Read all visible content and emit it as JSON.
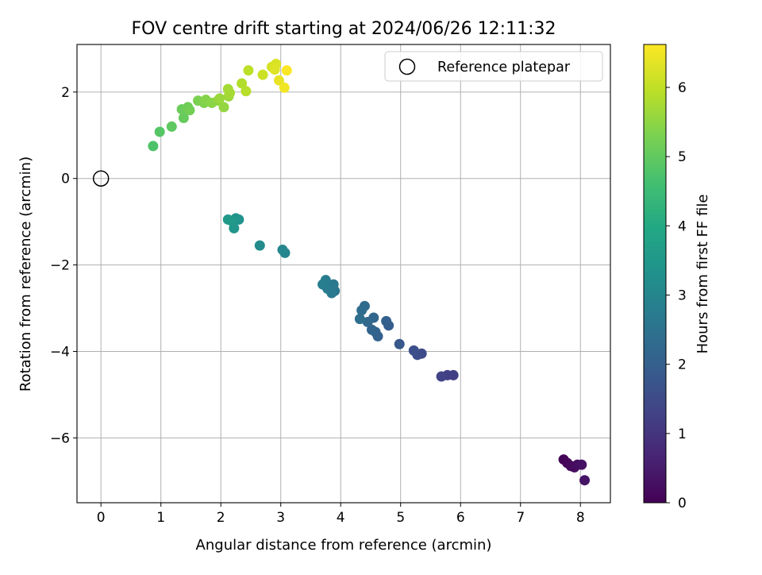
{
  "chart_data": {
    "type": "scatter",
    "title": "FOV centre drift starting at 2024/06/26 12:11:32",
    "xlabel": "Angular distance from reference (arcmin)",
    "ylabel": "Rotation from reference (arcmin)",
    "xlim": [
      -0.4,
      8.5
    ],
    "ylim": [
      -7.5,
      3.1
    ],
    "x_ticks": [
      0,
      1,
      2,
      3,
      4,
      5,
      6,
      7,
      8
    ],
    "y_ticks": [
      -6,
      -4,
      -2,
      0,
      2
    ],
    "grid": true,
    "legend": {
      "position": "top-right",
      "entries": [
        "Reference platepar"
      ]
    },
    "reference_point": {
      "x": 0,
      "y": 0,
      "label": "Reference platepar"
    },
    "colorbar": {
      "label": "Hours from first FF file",
      "range": [
        0,
        6.62
      ],
      "ticks": [
        0,
        1,
        2,
        3,
        4,
        5,
        6
      ],
      "colormap": "viridis"
    },
    "points": [
      {
        "x": 7.72,
        "y": -6.5,
        "h": 0.05
      },
      {
        "x": 7.78,
        "y": -6.58,
        "h": 0.1
      },
      {
        "x": 7.84,
        "y": -6.65,
        "h": 0.15
      },
      {
        "x": 7.9,
        "y": -6.68,
        "h": 0.2
      },
      {
        "x": 7.95,
        "y": -6.62,
        "h": 0.25
      },
      {
        "x": 8.02,
        "y": -6.62,
        "h": 0.3
      },
      {
        "x": 8.07,
        "y": -6.98,
        "h": 0.35
      },
      {
        "x": 5.88,
        "y": -4.55,
        "h": 1.2
      },
      {
        "x": 5.78,
        "y": -4.55,
        "h": 1.25
      },
      {
        "x": 5.68,
        "y": -4.58,
        "h": 1.3
      },
      {
        "x": 5.35,
        "y": -4.05,
        "h": 1.5
      },
      {
        "x": 5.28,
        "y": -4.08,
        "h": 1.55
      },
      {
        "x": 5.22,
        "y": -3.98,
        "h": 1.6
      },
      {
        "x": 4.98,
        "y": -3.83,
        "h": 1.8
      },
      {
        "x": 4.8,
        "y": -3.4,
        "h": 1.95
      },
      {
        "x": 4.76,
        "y": -3.3,
        "h": 2.0
      },
      {
        "x": 4.62,
        "y": -3.65,
        "h": 2.05
      },
      {
        "x": 4.58,
        "y": -3.55,
        "h": 2.1
      },
      {
        "x": 4.52,
        "y": -3.5,
        "h": 2.15
      },
      {
        "x": 4.55,
        "y": -3.22,
        "h": 2.2
      },
      {
        "x": 4.45,
        "y": -3.32,
        "h": 2.25
      },
      {
        "x": 4.4,
        "y": -2.95,
        "h": 2.3
      },
      {
        "x": 4.35,
        "y": -3.05,
        "h": 2.35
      },
      {
        "x": 4.32,
        "y": -3.25,
        "h": 2.4
      },
      {
        "x": 3.9,
        "y": -2.6,
        "h": 2.6
      },
      {
        "x": 3.88,
        "y": -2.45,
        "h": 2.65
      },
      {
        "x": 3.85,
        "y": -2.65,
        "h": 2.68
      },
      {
        "x": 3.78,
        "y": -2.55,
        "h": 2.72
      },
      {
        "x": 3.75,
        "y": -2.35,
        "h": 2.75
      },
      {
        "x": 3.7,
        "y": -2.45,
        "h": 2.78
      },
      {
        "x": 3.07,
        "y": -1.72,
        "h": 3.0
      },
      {
        "x": 3.03,
        "y": -1.65,
        "h": 3.05
      },
      {
        "x": 2.65,
        "y": -1.55,
        "h": 3.15
      },
      {
        "x": 2.3,
        "y": -0.95,
        "h": 3.35
      },
      {
        "x": 2.25,
        "y": -0.92,
        "h": 3.4
      },
      {
        "x": 2.22,
        "y": -1.15,
        "h": 3.45
      },
      {
        "x": 2.18,
        "y": -0.98,
        "h": 3.5
      },
      {
        "x": 2.12,
        "y": -0.95,
        "h": 3.55
      },
      {
        "x": 0.87,
        "y": 0.75,
        "h": 4.75
      },
      {
        "x": 0.98,
        "y": 1.08,
        "h": 4.85
      },
      {
        "x": 1.18,
        "y": 1.2,
        "h": 4.95
      },
      {
        "x": 1.38,
        "y": 1.4,
        "h": 5.05
      },
      {
        "x": 1.35,
        "y": 1.6,
        "h": 5.1
      },
      {
        "x": 1.45,
        "y": 1.65,
        "h": 5.15
      },
      {
        "x": 1.48,
        "y": 1.58,
        "h": 5.2
      },
      {
        "x": 1.62,
        "y": 1.8,
        "h": 5.3
      },
      {
        "x": 1.72,
        "y": 1.75,
        "h": 5.35
      },
      {
        "x": 1.75,
        "y": 1.82,
        "h": 5.4
      },
      {
        "x": 1.85,
        "y": 1.75,
        "h": 5.45
      },
      {
        "x": 1.95,
        "y": 1.8,
        "h": 5.5
      },
      {
        "x": 2.05,
        "y": 1.65,
        "h": 5.55
      },
      {
        "x": 1.98,
        "y": 1.85,
        "h": 5.6
      },
      {
        "x": 2.13,
        "y": 1.9,
        "h": 5.65
      },
      {
        "x": 2.12,
        "y": 2.07,
        "h": 5.7
      },
      {
        "x": 2.15,
        "y": 1.98,
        "h": 5.72
      },
      {
        "x": 2.35,
        "y": 2.2,
        "h": 5.85
      },
      {
        "x": 2.42,
        "y": 2.02,
        "h": 5.9
      },
      {
        "x": 2.46,
        "y": 2.5,
        "h": 5.95
      },
      {
        "x": 2.7,
        "y": 2.4,
        "h": 6.1
      },
      {
        "x": 2.85,
        "y": 2.58,
        "h": 6.2
      },
      {
        "x": 2.92,
        "y": 2.65,
        "h": 6.25
      },
      {
        "x": 2.9,
        "y": 2.52,
        "h": 6.3
      },
      {
        "x": 2.97,
        "y": 2.27,
        "h": 6.4
      },
      {
        "x": 3.06,
        "y": 2.1,
        "h": 6.5
      },
      {
        "x": 3.1,
        "y": 2.5,
        "h": 6.6
      }
    ]
  }
}
